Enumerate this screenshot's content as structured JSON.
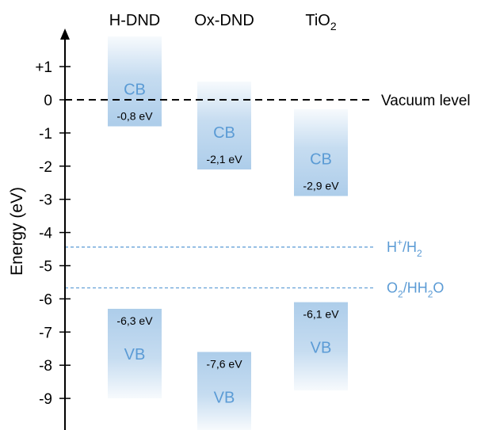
{
  "axis": {
    "title": "Energy (eV)",
    "ticks": [
      {
        "value": 1,
        "label": "+1"
      },
      {
        "value": 0,
        "label": "0"
      },
      {
        "value": -1,
        "label": "-1"
      },
      {
        "value": -2,
        "label": "-2"
      },
      {
        "value": -3,
        "label": "-3"
      },
      {
        "value": -4,
        "label": "-4"
      },
      {
        "value": -5,
        "label": "-5"
      },
      {
        "value": -6,
        "label": "-6"
      },
      {
        "value": -7,
        "label": "-7"
      },
      {
        "value": -8,
        "label": "-8"
      },
      {
        "value": -9,
        "label": "-9"
      }
    ]
  },
  "vacuum_level": {
    "energy": 0,
    "label": "Vacuum level"
  },
  "redox_levels": [
    {
      "energy": -4.44,
      "label_main": "H",
      "label_sup": "+",
      "label_mid": "/H",
      "label_sub": "2",
      "label_tail": ""
    },
    {
      "energy": -5.67,
      "label_main": "O",
      "label_sup": "",
      "label_mid": "",
      "label_sub": "2",
      "label_tail": "/H2O"
    }
  ],
  "materials": [
    {
      "name": "H-DND",
      "name_sub": "",
      "cb_label": "CB",
      "cb_edge": -0.8,
      "cb_edge_label": "-0,8 eV",
      "vb_label": "VB",
      "vb_edge": -6.3,
      "vb_edge_label": "-6,3 eV"
    },
    {
      "name": "Ox-DND",
      "name_sub": "",
      "cb_label": "CB",
      "cb_edge": -2.1,
      "cb_edge_label": "-2,1 eV",
      "vb_label": "VB",
      "vb_edge": -7.6,
      "vb_edge_label": "-7,6 eV"
    },
    {
      "name": "TiO",
      "name_sub": "2",
      "cb_label": "CB",
      "cb_edge": -2.9,
      "cb_edge_label": "-2,9 eV",
      "vb_label": "VB",
      "vb_edge": -6.1,
      "vb_edge_label": "-6,1 eV"
    }
  ],
  "colors": {
    "band": "#5b9bd5",
    "band_text": "#5b9bd5",
    "redox_line": "#5b9bd5",
    "vacuum_line": "#000000"
  }
}
